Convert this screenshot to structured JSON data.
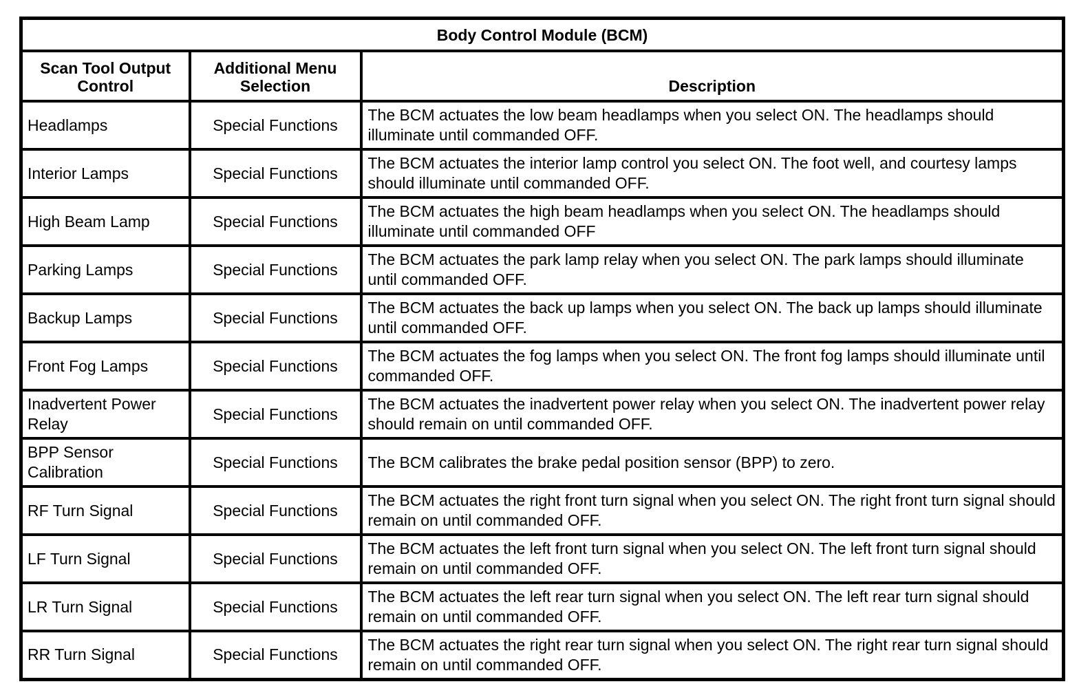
{
  "table": {
    "title": "Body Control Module (BCM)",
    "columns": [
      "Scan Tool Output Control",
      "Additional Menu Selection",
      "Description"
    ],
    "rows": [
      {
        "control": "Headlamps",
        "menu": "Special Functions",
        "description": "The BCM actuates the low beam headlamps when you select ON. The headlamps should illuminate until commanded OFF."
      },
      {
        "control": "Interior Lamps",
        "menu": "Special Functions",
        "description": "The BCM actuates the interior lamp control you select ON. The foot well, and courtesy lamps should illuminate until commanded OFF."
      },
      {
        "control": "High Beam Lamp",
        "menu": "Special Functions",
        "description": "The BCM actuates the high beam headlamps when you select ON. The headlamps should illuminate until commanded OFF"
      },
      {
        "control": "Parking Lamps",
        "menu": "Special Functions",
        "description": "The BCM actuates the park lamp relay when you select ON. The park lamps should illuminate until commanded OFF."
      },
      {
        "control": "Backup Lamps",
        "menu": "Special Functions",
        "description": "The BCM actuates the back up lamps when you select ON. The back up lamps should illuminate until commanded OFF."
      },
      {
        "control": "Front Fog Lamps",
        "menu": "Special Functions",
        "description": "The BCM actuates the fog lamps when you select ON. The front fog lamps should illuminate until commanded OFF."
      },
      {
        "control": "Inadvertent Power Relay",
        "menu": "Special Functions",
        "description": "The BCM actuates the inadvertent power relay when you select ON. The inadvertent power relay should remain on until commanded OFF."
      },
      {
        "control": "BPP Sensor Calibration",
        "menu": "Special Functions",
        "description": "The BCM calibrates the brake pedal position sensor (BPP) to zero."
      },
      {
        "control": "RF Turn Signal",
        "menu": "Special Functions",
        "description": "The BCM actuates the right front turn signal when you select ON. The right front turn signal should remain on until commanded OFF."
      },
      {
        "control": "LF Turn Signal",
        "menu": "Special Functions",
        "description": "The BCM actuates the left front turn signal when you select ON. The left front turn signal should remain on until commanded OFF."
      },
      {
        "control": "LR Turn Signal",
        "menu": "Special Functions",
        "description": "The BCM actuates the left rear turn signal when you select ON. The left rear turn signal should remain on until commanded OFF."
      },
      {
        "control": "RR Turn Signal",
        "menu": "Special Functions",
        "description": "The BCM actuates the right rear turn signal when you select ON. The right rear turn signal should remain on until commanded OFF."
      }
    ]
  }
}
